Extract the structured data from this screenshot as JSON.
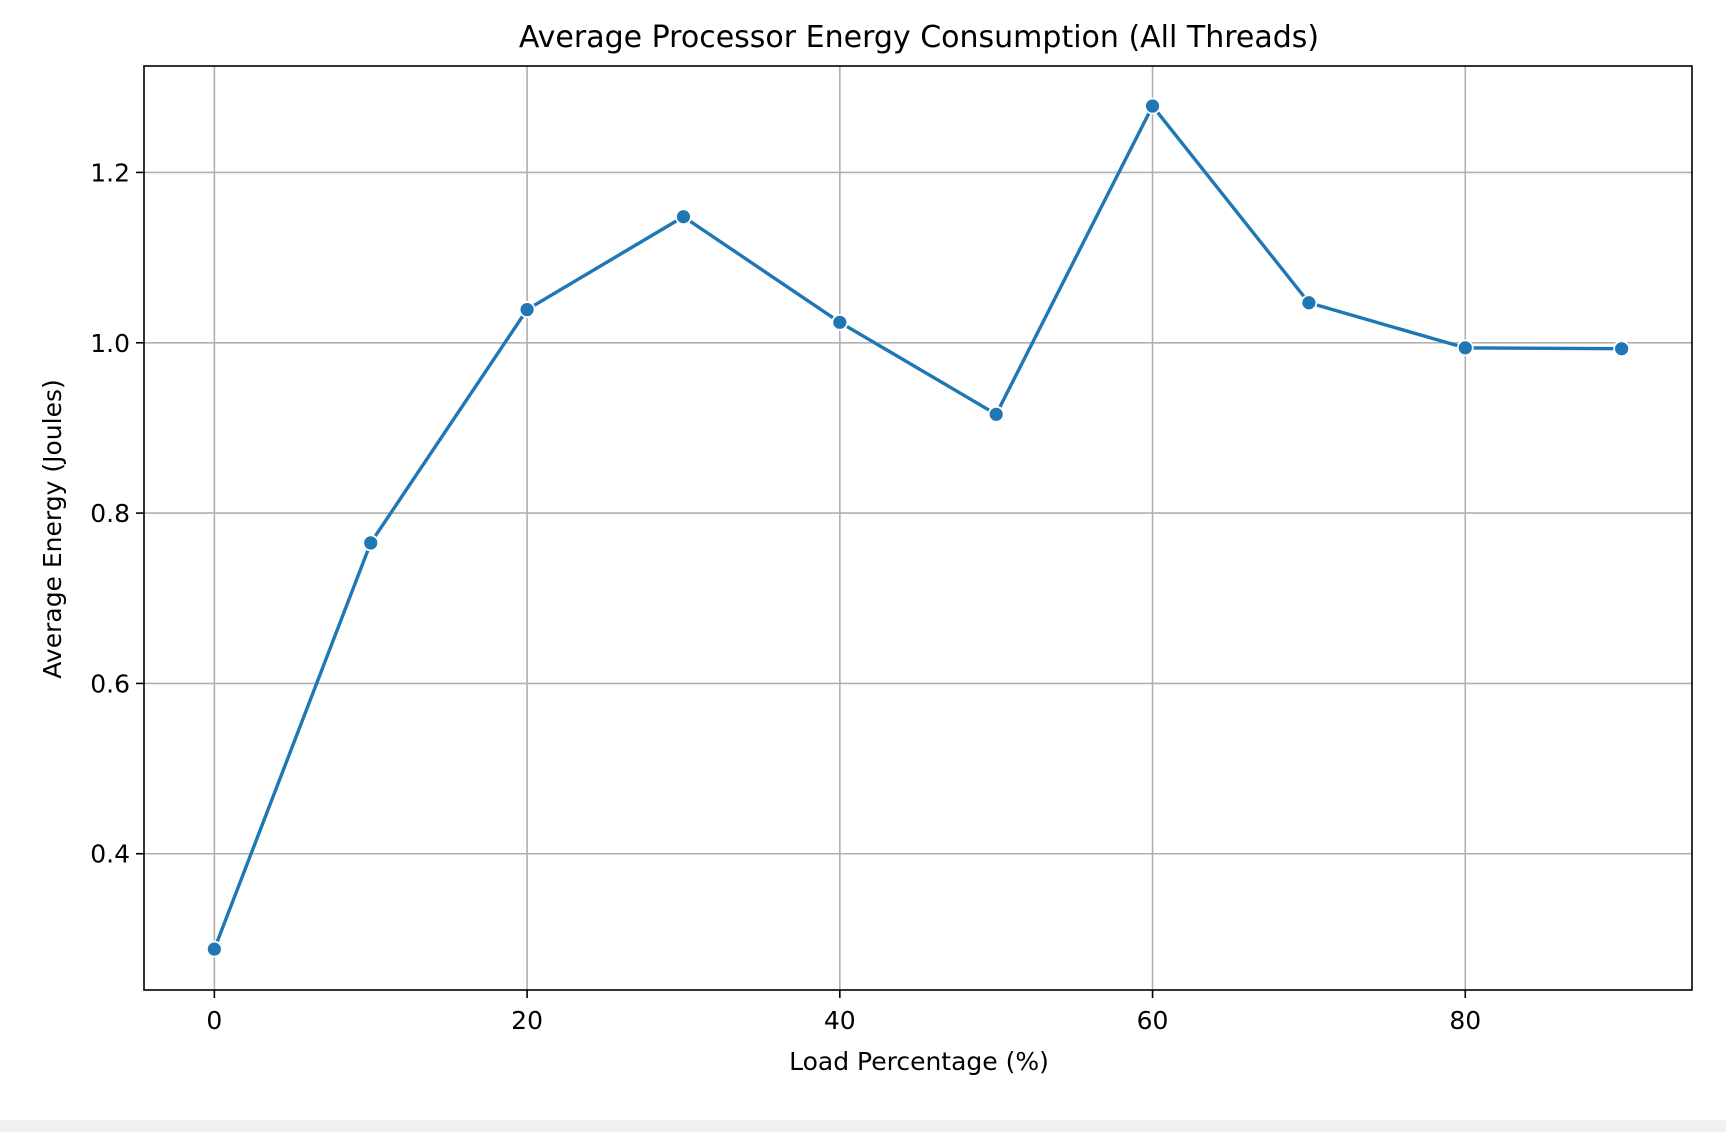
{
  "chart_data": {
    "type": "line",
    "title": "Average Processor Energy Consumption (All Threads)",
    "xlabel": "Load Percentage (%)",
    "ylabel": "Average Energy (Joules)",
    "xlim": [
      -4.5,
      94.5
    ],
    "ylim": [
      0.24,
      1.325
    ],
    "xticks": [
      0,
      20,
      40,
      60,
      80
    ],
    "xtick_labels": [
      "0",
      "20",
      "40",
      "60",
      "80"
    ],
    "yticks": [
      0.4,
      0.6,
      0.8,
      1.0,
      1.2
    ],
    "ytick_labels": [
      "0.4",
      "0.6",
      "0.8",
      "1.0",
      "1.2"
    ],
    "grid": true,
    "legend": "none",
    "series": [
      {
        "color": "#1f77b4",
        "marker": "circle",
        "x": [
          0,
          10,
          20,
          30,
          40,
          50,
          60,
          70,
          80,
          90
        ],
        "y": [
          0.288,
          0.765,
          1.039,
          1.148,
          1.024,
          0.916,
          1.278,
          1.047,
          0.994,
          0.993
        ]
      }
    ]
  },
  "colors": {
    "series": "#1f77b4",
    "grid": "#b0b0b0",
    "axes": "#000000",
    "background": "#ffffff",
    "footer": "#f0f1f2"
  }
}
